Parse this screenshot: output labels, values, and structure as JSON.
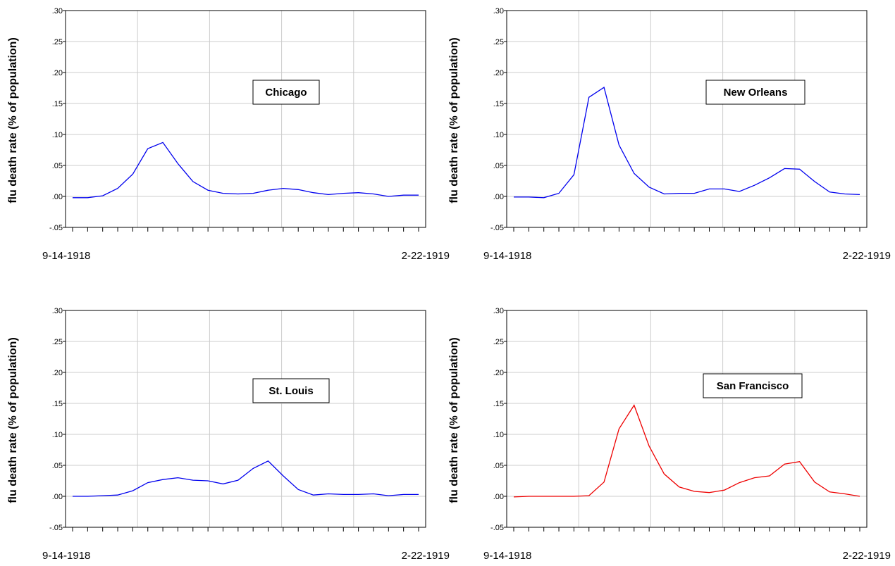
{
  "chart_data": [
    {
      "type": "line",
      "annotation": "Chicago",
      "ylabel": "flu death rate (% of population)",
      "x_start_label": "9-14-1918",
      "x_end_label": "2-22-1919",
      "ylim": [
        -0.05,
        0.3
      ],
      "yticks": [
        {
          "value": 0.3,
          "label": ".30"
        },
        {
          "value": 0.25,
          "label": ".25"
        },
        {
          "value": 0.2,
          "label": ".20"
        },
        {
          "value": 0.15,
          "label": ".15"
        },
        {
          "value": 0.1,
          "label": ".10"
        },
        {
          "value": 0.05,
          "label": ".05"
        },
        {
          "value": 0.0,
          "label": ".00"
        },
        {
          "value": -0.05,
          "label": "-.05"
        }
      ],
      "line_color": "#0000ee",
      "values": [
        -0.002,
        -0.002,
        0.001,
        0.013,
        0.036,
        0.077,
        0.087,
        0.053,
        0.024,
        0.01,
        0.005,
        0.004,
        0.005,
        0.01,
        0.013,
        0.011,
        0.006,
        0.003,
        0.005,
        0.006,
        0.004,
        0.0,
        0.002,
        0.002
      ]
    },
    {
      "type": "line",
      "annotation": "New Orleans",
      "ylabel": "flu death rate (% of population)",
      "x_start_label": "9-14-1918",
      "x_end_label": "2-22-1919",
      "ylim": [
        -0.05,
        0.3
      ],
      "yticks": [
        {
          "value": 0.3,
          "label": ".30"
        },
        {
          "value": 0.25,
          "label": ".25"
        },
        {
          "value": 0.2,
          "label": ".20"
        },
        {
          "value": 0.15,
          "label": ".15"
        },
        {
          "value": 0.1,
          "label": ".10"
        },
        {
          "value": 0.05,
          "label": ".05"
        },
        {
          "value": 0.0,
          "label": ".00"
        },
        {
          "value": -0.05,
          "label": "-.05"
        }
      ],
      "line_color": "#0000ee",
      "values": [
        -0.001,
        -0.001,
        -0.002,
        0.005,
        0.035,
        0.16,
        0.176,
        0.083,
        0.037,
        0.015,
        0.004,
        0.005,
        0.005,
        0.012,
        0.012,
        0.008,
        0.018,
        0.03,
        0.045,
        0.044,
        0.024,
        0.007,
        0.004,
        0.003
      ]
    },
    {
      "type": "line",
      "annotation": "St. Louis",
      "ylabel": "flu death rate (% of population)",
      "x_start_label": "9-14-1918",
      "x_end_label": "2-22-1919",
      "ylim": [
        -0.05,
        0.3
      ],
      "yticks": [
        {
          "value": 0.3,
          "label": ".30"
        },
        {
          "value": 0.25,
          "label": ".25"
        },
        {
          "value": 0.2,
          "label": ".20"
        },
        {
          "value": 0.15,
          "label": ".15"
        },
        {
          "value": 0.1,
          "label": ".10"
        },
        {
          "value": 0.05,
          "label": ".05"
        },
        {
          "value": 0.0,
          "label": ".00"
        },
        {
          "value": -0.05,
          "label": "-.05"
        }
      ],
      "line_color": "#0000ee",
      "values": [
        0.0,
        0.0,
        0.001,
        0.002,
        0.009,
        0.022,
        0.027,
        0.03,
        0.026,
        0.025,
        0.02,
        0.026,
        0.045,
        0.057,
        0.033,
        0.011,
        0.002,
        0.004,
        0.003,
        0.003,
        0.004,
        0.001,
        0.003,
        0.003
      ]
    },
    {
      "type": "line",
      "annotation": "San Francisco",
      "ylabel": "flu death rate (% of population)",
      "x_start_label": "9-14-1918",
      "x_end_label": "2-22-1919",
      "ylim": [
        -0.05,
        0.3
      ],
      "yticks": [
        {
          "value": 0.3,
          "label": ".30"
        },
        {
          "value": 0.25,
          "label": ".25"
        },
        {
          "value": 0.2,
          "label": ".20"
        },
        {
          "value": 0.15,
          "label": ".15"
        },
        {
          "value": 0.1,
          "label": ".10"
        },
        {
          "value": 0.05,
          "label": ".05"
        },
        {
          "value": 0.0,
          "label": ".00"
        },
        {
          "value": -0.05,
          "label": "-.05"
        }
      ],
      "line_color": "#ee0000",
      "values": [
        -0.001,
        0.0,
        0.0,
        0.0,
        0.0,
        0.001,
        0.023,
        0.109,
        0.147,
        0.081,
        0.036,
        0.015,
        0.008,
        0.006,
        0.01,
        0.022,
        0.03,
        0.033,
        0.052,
        0.056,
        0.023,
        0.007,
        0.004,
        0.0
      ]
    }
  ]
}
